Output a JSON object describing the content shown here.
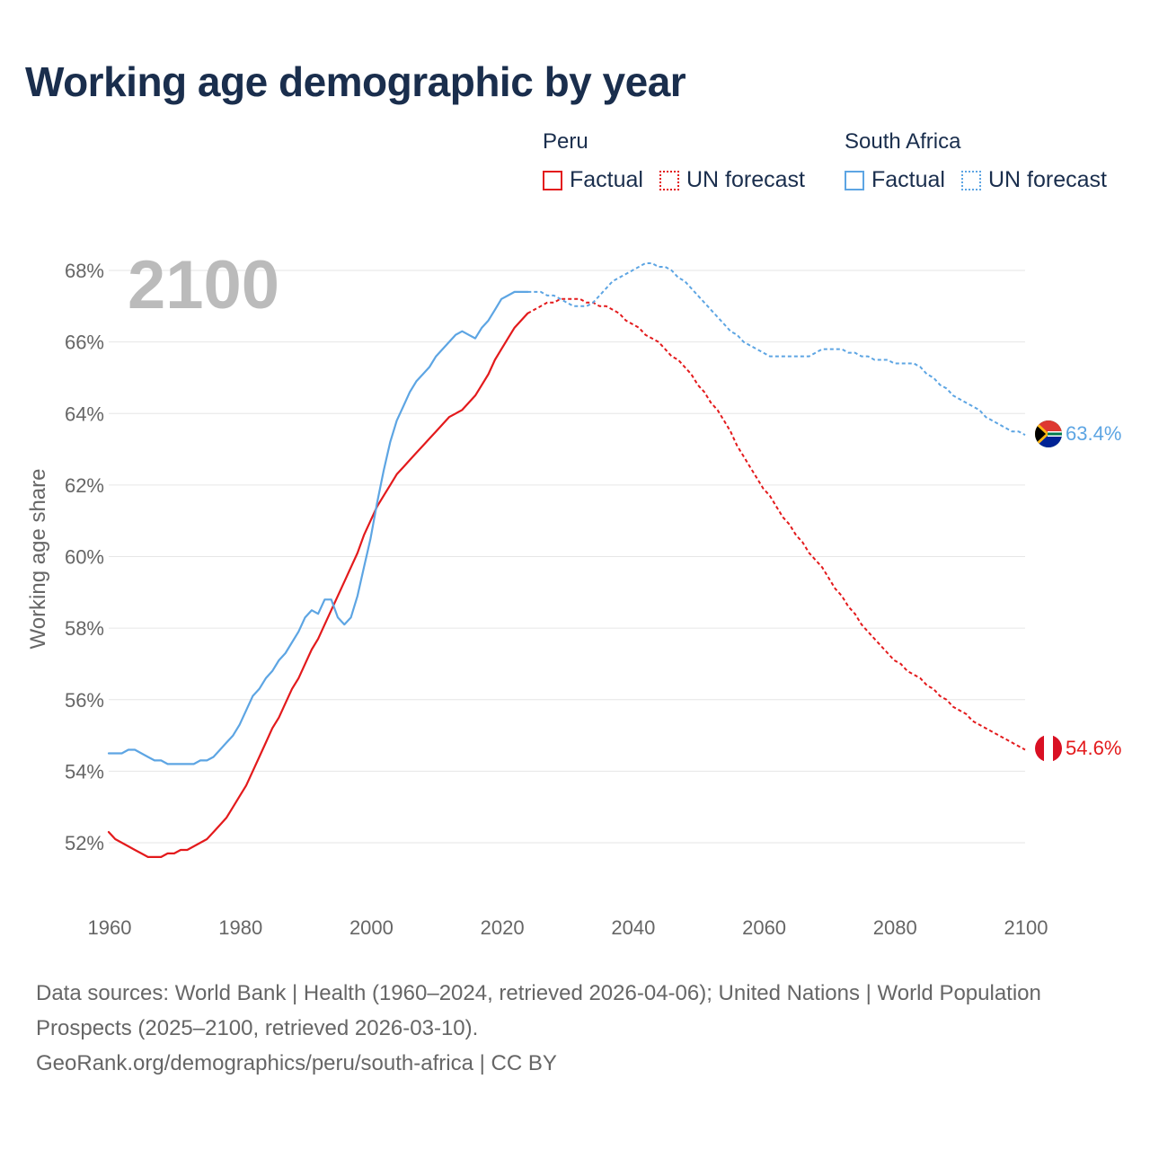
{
  "title": "Working age demographic by year",
  "legend": {
    "groups": [
      {
        "name": "Peru",
        "color": "#e31a1c",
        "items": [
          {
            "label": "Factual",
            "style": "solid"
          },
          {
            "label": "UN forecast",
            "style": "dotted"
          }
        ]
      },
      {
        "name": "South Africa",
        "color": "#5da5e3",
        "items": [
          {
            "label": "Factual",
            "style": "solid"
          },
          {
            "label": "UN forecast",
            "style": "dotted"
          }
        ]
      }
    ]
  },
  "year_label": "2100",
  "footer": {
    "sources": "Data sources: World Bank | Health (1960–2024, retrieved 2026-04-06); United Nations | World Population Prospects (2025–2100, retrieved 2026-03-10).",
    "link": "GeoRank.org/demographics/peru/south-africa | CC BY"
  },
  "chart_data": {
    "type": "line",
    "title": "Working age demographic by year",
    "xlabel": "",
    "ylabel": "Working age share",
    "xlim": [
      1960,
      2103
    ],
    "ylim": [
      50.2,
      69
    ],
    "x_ticks": [
      1960,
      1980,
      2000,
      2020,
      2040,
      2060,
      2080,
      2100
    ],
    "y_ticks": [
      52,
      54,
      56,
      58,
      60,
      62,
      64,
      66,
      68
    ],
    "y_tick_labels": [
      "52%",
      "54%",
      "56%",
      "58%",
      "60%",
      "62%",
      "64%",
      "66%",
      "68%"
    ],
    "grid": true,
    "forecast_start": 2024,
    "series": [
      {
        "name": "Peru",
        "color": "#e31a1c",
        "end_label": "54.6%",
        "factual": [
          [
            1960,
            52.3
          ],
          [
            1961,
            52.1
          ],
          [
            1962,
            52.0
          ],
          [
            1963,
            51.9
          ],
          [
            1964,
            51.8
          ],
          [
            1965,
            51.7
          ],
          [
            1966,
            51.6
          ],
          [
            1967,
            51.6
          ],
          [
            1968,
            51.6
          ],
          [
            1969,
            51.7
          ],
          [
            1970,
            51.7
          ],
          [
            1971,
            51.8
          ],
          [
            1972,
            51.8
          ],
          [
            1973,
            51.9
          ],
          [
            1974,
            52.0
          ],
          [
            1975,
            52.1
          ],
          [
            1976,
            52.3
          ],
          [
            1977,
            52.5
          ],
          [
            1978,
            52.7
          ],
          [
            1979,
            53.0
          ],
          [
            1980,
            53.3
          ],
          [
            1981,
            53.6
          ],
          [
            1982,
            54.0
          ],
          [
            1983,
            54.4
          ],
          [
            1984,
            54.8
          ],
          [
            1985,
            55.2
          ],
          [
            1986,
            55.5
          ],
          [
            1987,
            55.9
          ],
          [
            1988,
            56.3
          ],
          [
            1989,
            56.6
          ],
          [
            1990,
            57.0
          ],
          [
            1991,
            57.4
          ],
          [
            1992,
            57.7
          ],
          [
            1993,
            58.1
          ],
          [
            1994,
            58.5
          ],
          [
            1995,
            58.9
          ],
          [
            1996,
            59.3
          ],
          [
            1997,
            59.7
          ],
          [
            1998,
            60.1
          ],
          [
            1999,
            60.6
          ],
          [
            2000,
            61.0
          ],
          [
            2001,
            61.4
          ],
          [
            2002,
            61.7
          ],
          [
            2003,
            62.0
          ],
          [
            2004,
            62.3
          ],
          [
            2005,
            62.5
          ],
          [
            2006,
            62.7
          ],
          [
            2007,
            62.9
          ],
          [
            2008,
            63.1
          ],
          [
            2009,
            63.3
          ],
          [
            2010,
            63.5
          ],
          [
            2011,
            63.7
          ],
          [
            2012,
            63.9
          ],
          [
            2013,
            64.0
          ],
          [
            2014,
            64.1
          ],
          [
            2015,
            64.3
          ],
          [
            2016,
            64.5
          ],
          [
            2017,
            64.8
          ],
          [
            2018,
            65.1
          ],
          [
            2019,
            65.5
          ],
          [
            2020,
            65.8
          ],
          [
            2021,
            66.1
          ],
          [
            2022,
            66.4
          ],
          [
            2023,
            66.6
          ],
          [
            2024,
            66.8
          ]
        ],
        "forecast": [
          [
            2024,
            66.8
          ],
          [
            2025,
            66.9
          ],
          [
            2026,
            67.0
          ],
          [
            2027,
            67.1
          ],
          [
            2028,
            67.1
          ],
          [
            2029,
            67.2
          ],
          [
            2030,
            67.2
          ],
          [
            2031,
            67.2
          ],
          [
            2032,
            67.2
          ],
          [
            2033,
            67.1
          ],
          [
            2034,
            67.1
          ],
          [
            2035,
            67.0
          ],
          [
            2036,
            67.0
          ],
          [
            2037,
            66.9
          ],
          [
            2038,
            66.8
          ],
          [
            2039,
            66.6
          ],
          [
            2040,
            66.5
          ],
          [
            2041,
            66.4
          ],
          [
            2042,
            66.2
          ],
          [
            2043,
            66.1
          ],
          [
            2044,
            66.0
          ],
          [
            2045,
            65.8
          ],
          [
            2046,
            65.6
          ],
          [
            2047,
            65.5
          ],
          [
            2048,
            65.3
          ],
          [
            2049,
            65.1
          ],
          [
            2050,
            64.8
          ],
          [
            2051,
            64.6
          ],
          [
            2052,
            64.3
          ],
          [
            2053,
            64.1
          ],
          [
            2054,
            63.8
          ],
          [
            2055,
            63.5
          ],
          [
            2056,
            63.1
          ],
          [
            2057,
            62.8
          ],
          [
            2058,
            62.5
          ],
          [
            2059,
            62.2
          ],
          [
            2060,
            61.9
          ],
          [
            2061,
            61.7
          ],
          [
            2062,
            61.4
          ],
          [
            2063,
            61.1
          ],
          [
            2064,
            60.9
          ],
          [
            2065,
            60.6
          ],
          [
            2066,
            60.4
          ],
          [
            2067,
            60.1
          ],
          [
            2068,
            59.9
          ],
          [
            2069,
            59.7
          ],
          [
            2070,
            59.4
          ],
          [
            2071,
            59.1
          ],
          [
            2072,
            58.9
          ],
          [
            2073,
            58.6
          ],
          [
            2074,
            58.4
          ],
          [
            2075,
            58.1
          ],
          [
            2076,
            57.9
          ],
          [
            2077,
            57.7
          ],
          [
            2078,
            57.5
          ],
          [
            2079,
            57.3
          ],
          [
            2080,
            57.1
          ],
          [
            2081,
            57.0
          ],
          [
            2082,
            56.8
          ],
          [
            2083,
            56.7
          ],
          [
            2084,
            56.6
          ],
          [
            2085,
            56.4
          ],
          [
            2086,
            56.3
          ],
          [
            2087,
            56.1
          ],
          [
            2088,
            56.0
          ],
          [
            2089,
            55.8
          ],
          [
            2090,
            55.7
          ],
          [
            2091,
            55.6
          ],
          [
            2092,
            55.4
          ],
          [
            2093,
            55.3
          ],
          [
            2094,
            55.2
          ],
          [
            2095,
            55.1
          ],
          [
            2096,
            55.0
          ],
          [
            2097,
            54.9
          ],
          [
            2098,
            54.8
          ],
          [
            2099,
            54.7
          ],
          [
            2100,
            54.6
          ]
        ]
      },
      {
        "name": "South Africa",
        "color": "#5da5e3",
        "end_label": "63.4%",
        "factual": [
          [
            1960,
            54.5
          ],
          [
            1961,
            54.5
          ],
          [
            1962,
            54.5
          ],
          [
            1963,
            54.6
          ],
          [
            1964,
            54.6
          ],
          [
            1965,
            54.5
          ],
          [
            1966,
            54.4
          ],
          [
            1967,
            54.3
          ],
          [
            1968,
            54.3
          ],
          [
            1969,
            54.2
          ],
          [
            1970,
            54.2
          ],
          [
            1971,
            54.2
          ],
          [
            1972,
            54.2
          ],
          [
            1973,
            54.2
          ],
          [
            1974,
            54.3
          ],
          [
            1975,
            54.3
          ],
          [
            1976,
            54.4
          ],
          [
            1977,
            54.6
          ],
          [
            1978,
            54.8
          ],
          [
            1979,
            55.0
          ],
          [
            1980,
            55.3
          ],
          [
            1981,
            55.7
          ],
          [
            1982,
            56.1
          ],
          [
            1983,
            56.3
          ],
          [
            1984,
            56.6
          ],
          [
            1985,
            56.8
          ],
          [
            1986,
            57.1
          ],
          [
            1987,
            57.3
          ],
          [
            1988,
            57.6
          ],
          [
            1989,
            57.9
          ],
          [
            1990,
            58.3
          ],
          [
            1991,
            58.5
          ],
          [
            1992,
            58.4
          ],
          [
            1993,
            58.8
          ],
          [
            1994,
            58.8
          ],
          [
            1995,
            58.3
          ],
          [
            1996,
            58.1
          ],
          [
            1997,
            58.3
          ],
          [
            1998,
            58.9
          ],
          [
            1999,
            59.7
          ],
          [
            2000,
            60.5
          ],
          [
            2001,
            61.5
          ],
          [
            2002,
            62.4
          ],
          [
            2003,
            63.2
          ],
          [
            2004,
            63.8
          ],
          [
            2005,
            64.2
          ],
          [
            2006,
            64.6
          ],
          [
            2007,
            64.9
          ],
          [
            2008,
            65.1
          ],
          [
            2009,
            65.3
          ],
          [
            2010,
            65.6
          ],
          [
            2011,
            65.8
          ],
          [
            2012,
            66.0
          ],
          [
            2013,
            66.2
          ],
          [
            2014,
            66.3
          ],
          [
            2015,
            66.2
          ],
          [
            2016,
            66.1
          ],
          [
            2017,
            66.4
          ],
          [
            2018,
            66.6
          ],
          [
            2019,
            66.9
          ],
          [
            2020,
            67.2
          ],
          [
            2021,
            67.3
          ],
          [
            2022,
            67.4
          ],
          [
            2023,
            67.4
          ],
          [
            2024,
            67.4
          ]
        ],
        "forecast": [
          [
            2024,
            67.4
          ],
          [
            2025,
            67.4
          ],
          [
            2026,
            67.4
          ],
          [
            2027,
            67.3
          ],
          [
            2028,
            67.3
          ],
          [
            2029,
            67.2
          ],
          [
            2030,
            67.1
          ],
          [
            2031,
            67.0
          ],
          [
            2032,
            67.0
          ],
          [
            2033,
            67.0
          ],
          [
            2034,
            67.1
          ],
          [
            2035,
            67.3
          ],
          [
            2036,
            67.5
          ],
          [
            2037,
            67.7
          ],
          [
            2038,
            67.8
          ],
          [
            2039,
            67.9
          ],
          [
            2040,
            68.0
          ],
          [
            2041,
            68.1
          ],
          [
            2042,
            68.2
          ],
          [
            2043,
            68.2
          ],
          [
            2044,
            68.1
          ],
          [
            2045,
            68.1
          ],
          [
            2046,
            68.0
          ],
          [
            2047,
            67.8
          ],
          [
            2048,
            67.7
          ],
          [
            2049,
            67.5
          ],
          [
            2050,
            67.3
          ],
          [
            2051,
            67.1
          ],
          [
            2052,
            66.9
          ],
          [
            2053,
            66.7
          ],
          [
            2054,
            66.5
          ],
          [
            2055,
            66.3
          ],
          [
            2056,
            66.2
          ],
          [
            2057,
            66.0
          ],
          [
            2058,
            65.9
          ],
          [
            2059,
            65.8
          ],
          [
            2060,
            65.7
          ],
          [
            2061,
            65.6
          ],
          [
            2062,
            65.6
          ],
          [
            2063,
            65.6
          ],
          [
            2064,
            65.6
          ],
          [
            2065,
            65.6
          ],
          [
            2066,
            65.6
          ],
          [
            2067,
            65.6
          ],
          [
            2068,
            65.7
          ],
          [
            2069,
            65.8
          ],
          [
            2070,
            65.8
          ],
          [
            2071,
            65.8
          ],
          [
            2072,
            65.8
          ],
          [
            2073,
            65.7
          ],
          [
            2074,
            65.7
          ],
          [
            2075,
            65.6
          ],
          [
            2076,
            65.6
          ],
          [
            2077,
            65.5
          ],
          [
            2078,
            65.5
          ],
          [
            2079,
            65.5
          ],
          [
            2080,
            65.4
          ],
          [
            2081,
            65.4
          ],
          [
            2082,
            65.4
          ],
          [
            2083,
            65.4
          ],
          [
            2084,
            65.3
          ],
          [
            2085,
            65.1
          ],
          [
            2086,
            65.0
          ],
          [
            2087,
            64.8
          ],
          [
            2088,
            64.7
          ],
          [
            2089,
            64.5
          ],
          [
            2090,
            64.4
          ],
          [
            2091,
            64.3
          ],
          [
            2092,
            64.2
          ],
          [
            2093,
            64.1
          ],
          [
            2094,
            63.9
          ],
          [
            2095,
            63.8
          ],
          [
            2096,
            63.7
          ],
          [
            2097,
            63.6
          ],
          [
            2098,
            63.5
          ],
          [
            2099,
            63.5
          ],
          [
            2100,
            63.4
          ]
        ]
      }
    ]
  }
}
